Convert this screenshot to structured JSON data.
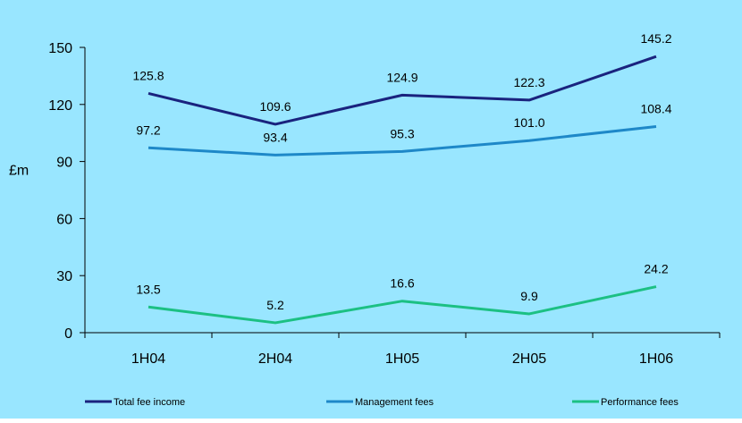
{
  "colors": {
    "background": "#99E6FF",
    "axis": "#000000",
    "total_fee_income": "#1A237E",
    "management_fees": "#1E88C8",
    "performance_fees": "#1CC083"
  },
  "chart_data": {
    "type": "line",
    "title": "",
    "xlabel": "",
    "ylabel": "£m",
    "ylim": [
      0,
      150
    ],
    "yticks": [
      0,
      30,
      60,
      90,
      120,
      150
    ],
    "categories": [
      "1H04",
      "2H04",
      "1H05",
      "2H05",
      "1H06"
    ],
    "grid": false,
    "legend_position": "bottom",
    "series": [
      {
        "name": "Total fee income",
        "color": "#1A237E",
        "values": [
          125.8,
          109.6,
          124.9,
          122.3,
          145.2
        ],
        "labels": [
          "125.8",
          "109.6",
          "124.9",
          "122.3",
          "145.2"
        ]
      },
      {
        "name": "Management fees",
        "color": "#1E88C8",
        "values": [
          97.2,
          93.4,
          95.3,
          101.0,
          108.4
        ],
        "labels": [
          "97.2",
          "93.4",
          "95.3",
          "101.0",
          "108.4"
        ]
      },
      {
        "name": "Performance fees",
        "color": "#1CC083",
        "values": [
          13.5,
          5.2,
          16.6,
          9.9,
          24.2
        ],
        "labels": [
          "13.5",
          "5.2",
          "16.6",
          "9.9",
          "24.2"
        ]
      }
    ]
  }
}
